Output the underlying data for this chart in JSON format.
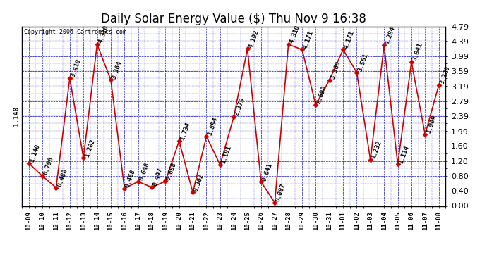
{
  "title": "Daily Solar Energy Value ($) Thu Nov 9 16:38",
  "copyright": "Copyright 2006 Cartronics.com",
  "categories": [
    "10-09",
    "10-10",
    "10-11",
    "10-12",
    "10-13",
    "10-14",
    "10-15",
    "10-16",
    "10-17",
    "10-18",
    "10-19",
    "10-20",
    "10-21",
    "10-22",
    "10-23",
    "10-24",
    "10-25",
    "10-26",
    "10-27",
    "10-28",
    "10-29",
    "10-30",
    "10-31",
    "11-01",
    "11-02",
    "11-03",
    "11-04",
    "11-05",
    "11-06",
    "11-07",
    "11-08"
  ],
  "values": [
    1.14,
    0.796,
    0.488,
    3.41,
    1.282,
    4.31,
    3.364,
    0.468,
    0.648,
    0.497,
    0.658,
    1.734,
    0.362,
    1.854,
    1.101,
    2.375,
    4.192,
    0.641,
    0.087,
    4.31,
    4.171,
    2.698,
    3.36,
    4.171,
    3.561,
    1.232,
    4.284,
    1.114,
    3.841,
    1.909,
    3.22
  ],
  "value_labels": [
    "1.140",
    "0.796",
    "0.488",
    "3.410",
    "1.282",
    "4.310",
    "3.364",
    "0.468",
    "0.648",
    "0.497",
    "0.658",
    "1.734",
    "0.362",
    "1.854",
    "1.101",
    "2.375",
    "4.192",
    "0.641",
    "0.087",
    "4.310",
    "4.171",
    "2.698",
    "3.360",
    "4.171",
    "3.561",
    "1.232",
    "4.284",
    "1.114",
    "3.841",
    "1.909",
    "3.220"
  ],
  "ylim": [
    0.0,
    4.79
  ],
  "yticks": [
    0.0,
    0.4,
    0.8,
    1.2,
    1.6,
    1.99,
    2.39,
    2.79,
    3.19,
    3.59,
    3.99,
    4.39,
    4.79
  ],
  "line_color": "#cc0000",
  "marker_color": "#cc0000",
  "bg_color": "#ffffff",
  "plot_bg_color": "#ffffff",
  "grid_color": "#0000bb",
  "title_fontsize": 12,
  "label_fontsize": 6.5,
  "ytick_fontsize": 8,
  "xtick_fontsize": 6.5
}
